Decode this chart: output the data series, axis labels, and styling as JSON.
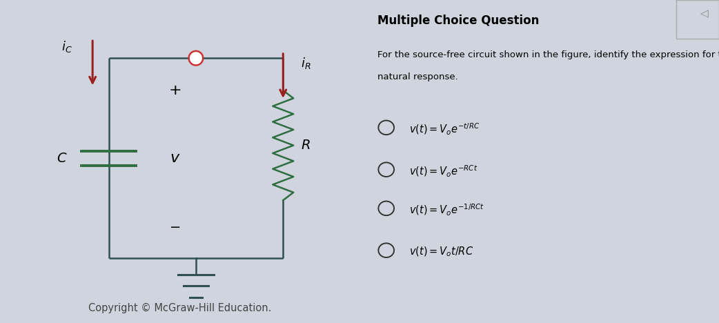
{
  "bg_color": "#cfd4df",
  "title": "Multiple Choice Question",
  "question_line1": "For the source-free circuit shown in the figure, identify the expression for the",
  "question_line2": "natural response.",
  "wire_color": "#2f5050",
  "resistor_color": "#2e6e40",
  "arrow_color": "#9b2020",
  "cap_color": "#2e6e40",
  "ground_color": "#2f5050",
  "node_color": "#cc3333",
  "copyright": "Copyright © McGraw-Hill Education.",
  "option_texts_latex": [
    "$v(t) = V_o e^{-t/RC}$",
    "$v(t) = V_o e^{-RCt}$",
    "$v(t) = V_o e^{-1/RCt}$",
    "$v(t) = V_o t/RC$"
  ]
}
